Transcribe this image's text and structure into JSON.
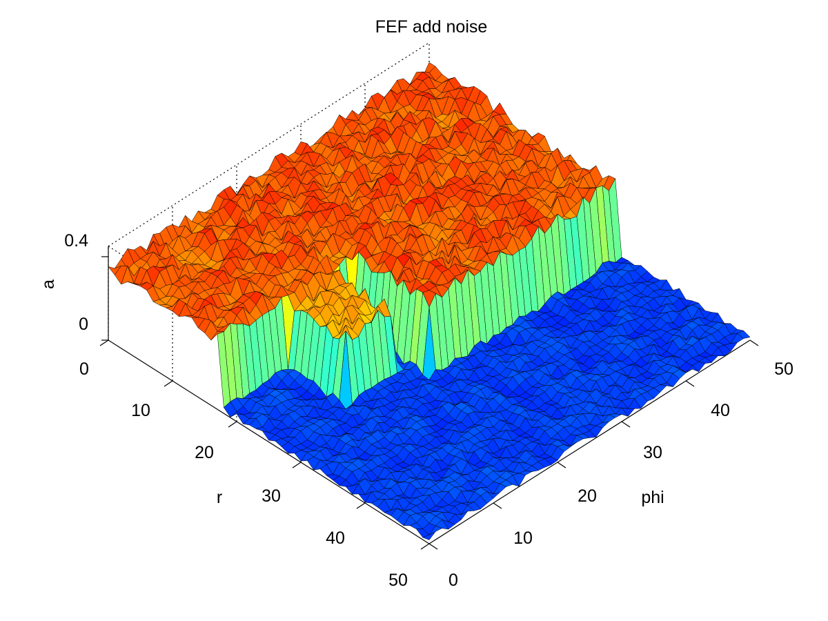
{
  "chart_data": {
    "type": "surface",
    "title": "FEF add noise",
    "xlabel": "r",
    "ylabel": "phi",
    "zlabel": "a",
    "xlim": [
      0,
      50
    ],
    "ylim": [
      0,
      50
    ],
    "zlim": [
      0,
      0.4
    ],
    "x_ticks": [
      "0",
      "10",
      "20",
      "30",
      "40",
      "50"
    ],
    "y_ticks": [
      "0",
      "10",
      "20",
      "30",
      "40",
      "50"
    ],
    "z_ticks": [
      "0",
      "0.4"
    ],
    "grid": true,
    "colormap": "jet",
    "grid_size": 50,
    "background_level": 0.02,
    "noise_amplitude": 0.02,
    "plateaus": [
      {
        "r_range": [
          0,
          17
        ],
        "phi_range": [
          0,
          50
        ],
        "level": 0.34
      },
      {
        "r_range": [
          17,
          29
        ],
        "phi_range": [
          21,
          50
        ],
        "level": 0.34
      },
      {
        "r_range": [
          17,
          26
        ],
        "phi_range": [
          11,
          18
        ],
        "level": 0.3
      }
    ]
  }
}
